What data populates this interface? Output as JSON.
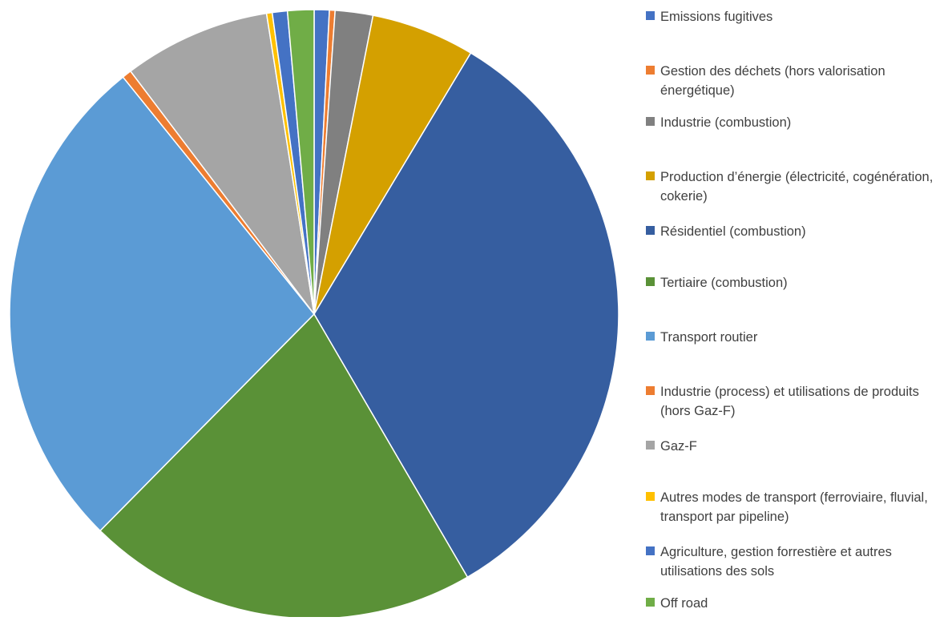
{
  "chart_data": {
    "type": "pie",
    "title": "",
    "legend_position": "right",
    "slices": [
      {
        "label": "Emissions fugitives",
        "value": 0.8,
        "color": "#4472C4"
      },
      {
        "label": "Gestion des déchets (hors valorisation énergétique)",
        "value": 0.3,
        "color": "#ED7D31"
      },
      {
        "label": "Industrie (combustion)",
        "value": 2.0,
        "color": "#808080"
      },
      {
        "label": "Production d’énergie (électricité, cogénération, cokerie)",
        "value": 5.5,
        "color": "#D4A000"
      },
      {
        "label": "Résidentiel (combustion)",
        "value": 33.0,
        "color": "#365EA0"
      },
      {
        "label": "Tertiaire (combustion)",
        "value": 20.8,
        "color": "#5A9137"
      },
      {
        "label": "Transport routier",
        "value": 26.8,
        "color": "#5B9BD5"
      },
      {
        "label": "Industrie (process) et utilisations de produits (hors Gaz-F)",
        "value": 0.5,
        "color": "#ED7D31"
      },
      {
        "label": "Gaz-F",
        "value": 7.8,
        "color": "#A5A5A5"
      },
      {
        "label": "Autres modes de transport  (ferroviaire, fluvial, transport par pipeline)",
        "value": 0.3,
        "color": "#FFC000"
      },
      {
        "label": "Agriculture, gestion forrestière et autres utilisations des sols",
        "value": 0.8,
        "color": "#4472C4"
      },
      {
        "label": "Off road",
        "value": 1.4,
        "color": "#70AD47"
      }
    ]
  }
}
